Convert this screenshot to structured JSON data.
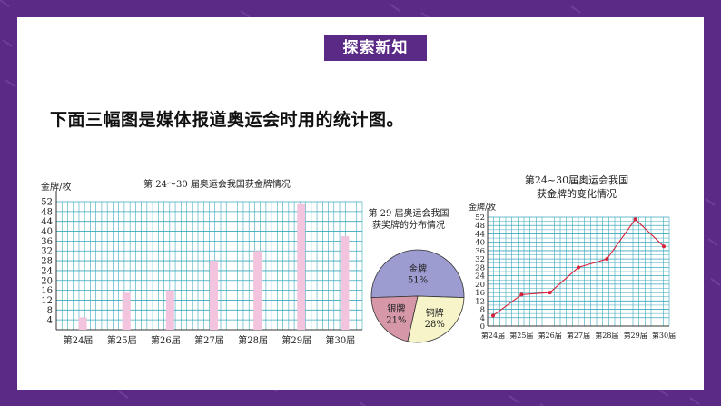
{
  "badge": "探索新知",
  "heading": "下面三幅图是媒体报道奥运会时用的统计图。",
  "colors": {
    "frame": "#5a2a86",
    "grid": "#3aa9bd",
    "bar": "#f2c4de",
    "line": "#d8213a",
    "pie_gold": "#9c9cd0",
    "pie_silver": "#d697a9",
    "pie_bronze": "#f6f4c8"
  },
  "chart_data": [
    {
      "type": "bar",
      "title": "第 24～30 届奥运会我国获金牌情况",
      "ylabel": "金牌/枚",
      "categories": [
        "第24届",
        "第25届",
        "第26届",
        "第27届",
        "第28届",
        "第29届",
        "第30届"
      ],
      "values": [
        5,
        15,
        16,
        28,
        32,
        51,
        38
      ],
      "ylim": [
        0,
        52
      ],
      "yticks": [
        4,
        8,
        12,
        16,
        20,
        24,
        28,
        32,
        36,
        40,
        44,
        48,
        52
      ],
      "grid": true
    },
    {
      "type": "pie",
      "title_lines": [
        "第 29 届奥运会我国",
        "获奖牌的分布情况"
      ],
      "slices": [
        {
          "label": "金牌",
          "value": 51,
          "pct_label": "51%"
        },
        {
          "label": "铜牌",
          "value": 28,
          "pct_label": "28%"
        },
        {
          "label": "银牌",
          "value": 21,
          "pct_label": "21%"
        }
      ]
    },
    {
      "type": "line",
      "title_lines": [
        "第24~30届奥运会我国",
        "获金牌的变化情况"
      ],
      "ylabel": "金牌/枚",
      "categories": [
        "第24届",
        "第25届",
        "第26届",
        "第27届",
        "第28届",
        "第29届",
        "第30届"
      ],
      "values": [
        5,
        15,
        16,
        28,
        32,
        51,
        38
      ],
      "ylim": [
        0,
        52
      ],
      "yticks": [
        0,
        4,
        8,
        12,
        16,
        20,
        24,
        28,
        32,
        36,
        40,
        44,
        48,
        52
      ],
      "grid": true
    }
  ]
}
